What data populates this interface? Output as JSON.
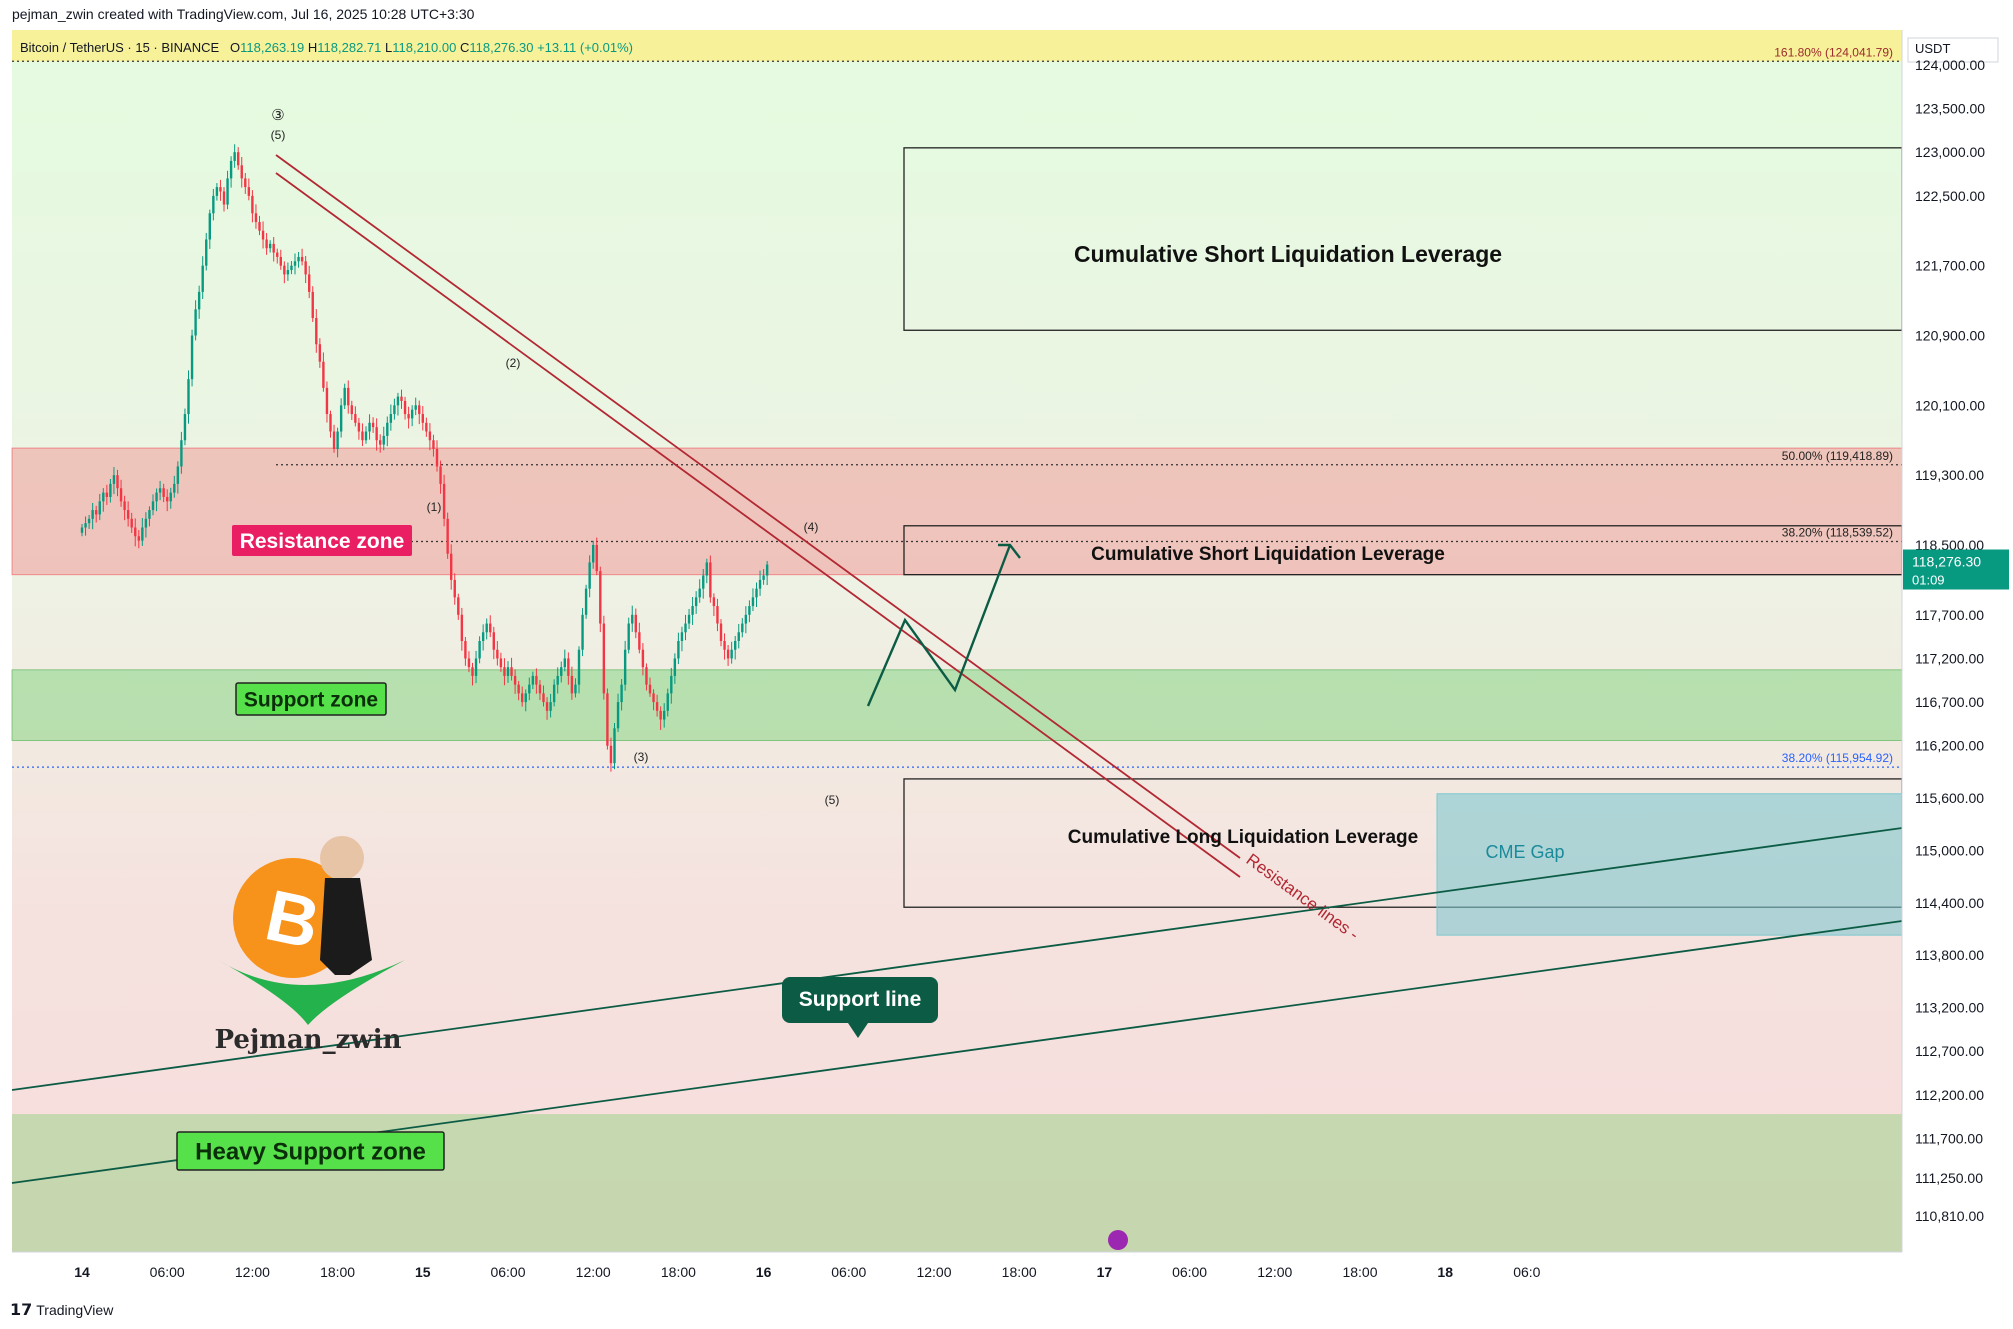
{
  "header": {
    "created_by": "pejman_zwin created with TradingView.com, Jul 16, 2025 10:28 UTC+3:30"
  },
  "symbol_bar": {
    "pair": "Bitcoin / TetherUS · 15 · BINANCE",
    "open_label": "O",
    "open": "118,263.19",
    "high_label": "H",
    "high": "118,282.71",
    "low_label": "L",
    "low": "118,210.00",
    "close_label": "C",
    "close": "118,276.30",
    "change": "+13.11 (+0.01%)"
  },
  "footer": {
    "brand": "TradingView"
  },
  "colors": {
    "resistance": "#f23645",
    "support": "#4caf50",
    "up": "#089981",
    "down": "#f23645",
    "trend": "#b22833",
    "support_line": "#0c5c45",
    "cme": "#7ec8cf"
  },
  "chart_data": {
    "type": "candlestick",
    "title": "Bitcoin / TetherUS · 15 · BINANCE",
    "currency": "USDT",
    "ylim": [
      110400,
      124400
    ],
    "price_ticks": [
      "124,000.00",
      "123,500.00",
      "123,000.00",
      "122,500.00",
      "121,700.00",
      "120,900.00",
      "120,100.00",
      "119,300.00",
      "118,500.00",
      "117,700.00",
      "117,200.00",
      "116,700.00",
      "116,200.00",
      "115,600.00",
      "115,000.00",
      "114,400.00",
      "113,800.00",
      "113,200.00",
      "112,700.00",
      "112,200.00",
      "111,700.00",
      "111,250.00",
      "110,810.00"
    ],
    "price_tick_values": [
      124000,
      123500,
      123000,
      122500,
      121700,
      120900,
      120100,
      119300,
      118500,
      117700,
      117200,
      116700,
      116200,
      115600,
      115000,
      114400,
      113800,
      113200,
      112700,
      112200,
      111700,
      111250,
      110810
    ],
    "time_ticks": [
      "14",
      "06:00",
      "12:00",
      "18:00",
      "15",
      "06:00",
      "12:00",
      "18:00",
      "16",
      "06:00",
      "12:00",
      "18:00",
      "17",
      "06:00",
      "12:00",
      "18:00",
      "18",
      "06:0"
    ],
    "time_tick_bars": [
      0,
      24,
      48,
      72,
      96,
      120,
      144,
      168,
      192,
      216,
      240,
      264,
      288,
      312,
      336,
      360,
      384,
      407
    ],
    "last_price": "118,276.30",
    "countdown": "01:09",
    "closes": [
      118700,
      118750,
      118800,
      118900,
      118850,
      119000,
      119100,
      119050,
      119200,
      119300,
      119150,
      119000,
      118900,
      118800,
      118700,
      118600,
      118550,
      118700,
      118800,
      118900,
      119000,
      119100,
      119150,
      119050,
      119000,
      119100,
      119200,
      119400,
      119700,
      120000,
      120400,
      120900,
      121200,
      121400,
      121700,
      122000,
      122300,
      122500,
      122600,
      122550,
      122400,
      122700,
      122900,
      123000,
      122850,
      122700,
      122600,
      122500,
      122300,
      122200,
      122100,
      122000,
      121900,
      121950,
      121850,
      121800,
      121700,
      121600,
      121650,
      121700,
      121750,
      121800,
      121750,
      121600,
      121400,
      121100,
      120800,
      120600,
      120300,
      120000,
      119800,
      119600,
      119800,
      120100,
      120300,
      120100,
      120000,
      119900,
      119800,
      119700,
      119800,
      119900,
      119850,
      119700,
      119650,
      119750,
      119900,
      120000,
      120100,
      120200,
      120150,
      120000,
      119950,
      120050,
      120100,
      120000,
      119900,
      119800,
      119700,
      119600,
      119400,
      119200,
      118800,
      118400,
      118100,
      117900,
      117700,
      117400,
      117200,
      117100,
      117000,
      117200,
      117400,
      117500,
      117600,
      117500,
      117300,
      117200,
      117100,
      117000,
      117100,
      117000,
      116900,
      116800,
      116700,
      116800,
      116900,
      117000,
      116900,
      116800,
      116700,
      116600,
      116700,
      116900,
      117000,
      117100,
      117200,
      117000,
      116800,
      116900,
      117300,
      117700,
      118000,
      118300,
      118500,
      118200,
      117600,
      116800,
      116200,
      116000,
      116400,
      116700,
      116900,
      117300,
      117600,
      117700,
      117500,
      117300,
      117100,
      116900,
      116800,
      116700,
      116600,
      116500,
      116600,
      116800,
      117000,
      117200,
      117400,
      117500,
      117600,
      117700,
      117800,
      117900,
      118000,
      118150,
      118300,
      117900,
      117800,
      117600,
      117400,
      117300,
      117200,
      117300,
      117400,
      117500,
      117600,
      117700,
      117800,
      117900,
      118000,
      118100,
      118150,
      118276
    ]
  },
  "zones": {
    "resistance": {
      "label": "Resistance zone",
      "top": 119610,
      "bottom": 118160
    },
    "support": {
      "label": "Support zone",
      "top": 117070,
      "bottom": 116260
    },
    "heavy_support": {
      "label": "Heavy Support zone",
      "top": 111980,
      "bottom": 110400
    }
  },
  "fib_levels": [
    {
      "label": "161.80% (124,041.79)",
      "price": 124041.79
    },
    {
      "label": "50.00% (119,418.89)",
      "price": 119418.89
    },
    {
      "label": "38.20% (118,539.52)",
      "price": 118539.52
    },
    {
      "label": "38.20% (115,954.92)",
      "price": 115954.92
    }
  ],
  "boxes": [
    {
      "label": "Cumulative Short Liquidation Leverage",
      "top": 123050,
      "bottom": 120960
    },
    {
      "label": "Cumulative Short Liquidation Leverage",
      "top": 118720,
      "bottom": 118160
    },
    {
      "label": "Cumulative Long Liquidation Leverage",
      "top": 115820,
      "bottom": 114350
    }
  ],
  "cme_gap": {
    "label": "CME Gap",
    "top": 115650,
    "bottom": 114030
  },
  "wave_labels": [
    "③",
    "(5)",
    "(1)",
    "(2)",
    "(3)",
    "(4)",
    "(5)"
  ],
  "annotations": {
    "resistance_lines": "Resistance lines",
    "support_line": "Support line",
    "author": "Pejman_zwin",
    "btc_symbol": "B"
  }
}
